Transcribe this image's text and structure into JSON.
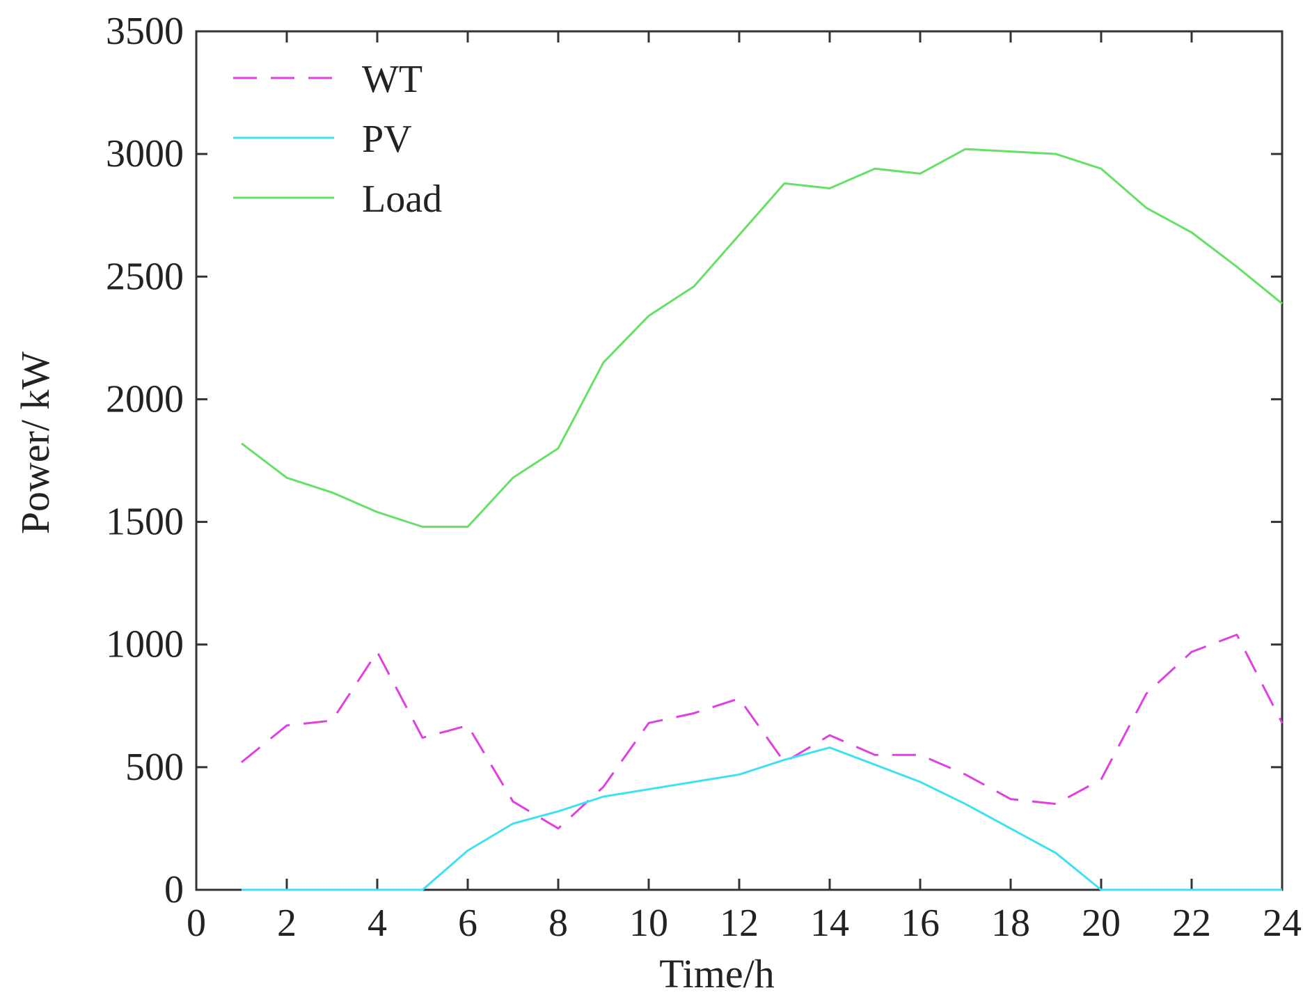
{
  "chart_data": {
    "type": "line",
    "title": "",
    "xlabel": "Time/h",
    "ylabel": "Power/ kW",
    "xlim": [
      0,
      24
    ],
    "ylim": [
      0,
      3500
    ],
    "x_ticks": [
      0,
      2,
      4,
      6,
      8,
      10,
      12,
      14,
      16,
      18,
      20,
      22,
      24
    ],
    "y_ticks": [
      0,
      500,
      1000,
      1500,
      2000,
      2500,
      3000,
      3500
    ],
    "grid": false,
    "legend_position": "top-left",
    "x": [
      1,
      2,
      3,
      4,
      5,
      6,
      7,
      8,
      9,
      10,
      11,
      12,
      13,
      14,
      15,
      16,
      17,
      18,
      19,
      20,
      21,
      22,
      23,
      24
    ],
    "series": [
      {
        "name": "WT",
        "color": "#e040e0",
        "dash": "dashed",
        "values": [
          520,
          670,
          690,
          970,
          620,
          670,
          360,
          250,
          420,
          680,
          720,
          780,
          520,
          630,
          550,
          550,
          470,
          370,
          350,
          450,
          800,
          970,
          1040,
          680
        ]
      },
      {
        "name": "PV",
        "color": "#40e0f0",
        "dash": "solid",
        "values": [
          0,
          0,
          0,
          0,
          0,
          160,
          270,
          320,
          380,
          410,
          440,
          470,
          530,
          580,
          510,
          440,
          350,
          250,
          150,
          0,
          0,
          0,
          0,
          0
        ]
      },
      {
        "name": "Load",
        "color": "#66e066",
        "dash": "solid",
        "values": [
          1820,
          1680,
          1620,
          1540,
          1480,
          1480,
          1680,
          1800,
          2150,
          2340,
          2460,
          2670,
          2880,
          2860,
          2940,
          2920,
          3020,
          3010,
          3000,
          2940,
          2780,
          2680,
          2540,
          2390
        ]
      }
    ]
  }
}
